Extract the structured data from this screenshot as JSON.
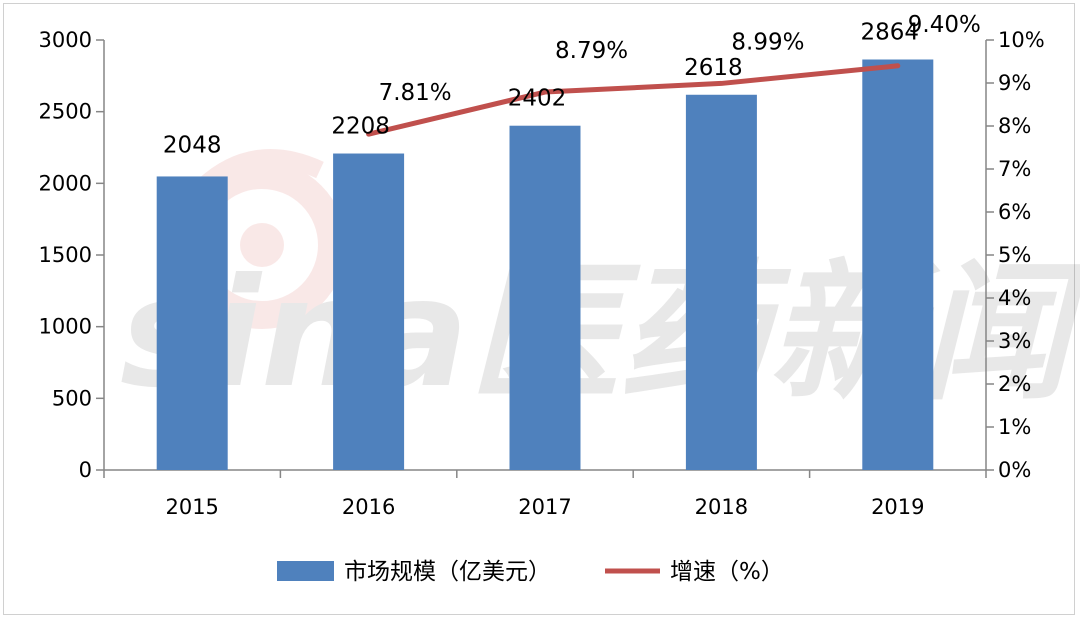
{
  "chart_data": {
    "type": "bar",
    "categories": [
      "2015",
      "2016",
      "2017",
      "2018",
      "2019"
    ],
    "series": [
      {
        "name": "市场规模（亿美元）",
        "type": "bar",
        "axis": "left",
        "values": [
          2048,
          2208,
          2402,
          2618,
          2864
        ],
        "labels": [
          "2048",
          "2208",
          "2402",
          "2618",
          "2864"
        ],
        "color": "#4f81bd"
      },
      {
        "name": "增速（%）",
        "type": "line",
        "axis": "right",
        "values": [
          null,
          7.81,
          8.79,
          8.99,
          9.4
        ],
        "labels": [
          "",
          "7.81%",
          "8.79%",
          "8.99%",
          "9.40%"
        ],
        "color": "#c0504d"
      }
    ],
    "y_left": {
      "range": [
        0,
        3000
      ],
      "ticks": [
        "0",
        "500",
        "1000",
        "1500",
        "2000",
        "2500",
        "3000"
      ]
    },
    "y_right": {
      "range": [
        0,
        10
      ],
      "ticks": [
        "0%",
        "1%",
        "2%",
        "3%",
        "4%",
        "5%",
        "6%",
        "7%",
        "8%",
        "9%",
        "10%"
      ]
    },
    "grid": false,
    "legend": "bottom",
    "watermark": "sina医药新闻"
  }
}
